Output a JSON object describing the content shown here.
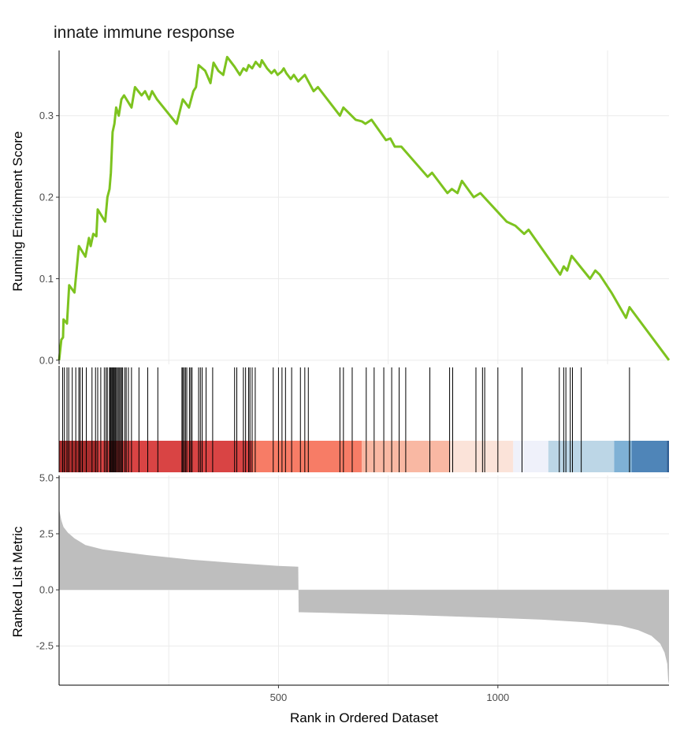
{
  "chart_data": {
    "type": "line",
    "title": "innate immune response",
    "rank_range": [
      0,
      1390
    ],
    "panels": {
      "running_score": {
        "ylabel": "Running Enrichment Score",
        "ylim": [
          -0.005,
          0.38
        ],
        "yticks": [
          {
            "value": 0.0,
            "label": "0.0"
          },
          {
            "value": 0.1,
            "label": "0.1"
          },
          {
            "value": 0.2,
            "label": "0.2"
          },
          {
            "value": 0.3,
            "label": "0.3"
          }
        ],
        "line_color": "#7dc31f",
        "points": [
          [
            0,
            0
          ],
          [
            5,
            0.025
          ],
          [
            9,
            0.028
          ],
          [
            10,
            0.05
          ],
          [
            18,
            0.045
          ],
          [
            23,
            0.092
          ],
          [
            35,
            0.083
          ],
          [
            45,
            0.14
          ],
          [
            60,
            0.127
          ],
          [
            68,
            0.15
          ],
          [
            72,
            0.14
          ],
          [
            78,
            0.155
          ],
          [
            85,
            0.152
          ],
          [
            88,
            0.185
          ],
          [
            105,
            0.17
          ],
          [
            110,
            0.2
          ],
          [
            115,
            0.21
          ],
          [
            118,
            0.23
          ],
          [
            122,
            0.28
          ],
          [
            126,
            0.29
          ],
          [
            130,
            0.31
          ],
          [
            136,
            0.3
          ],
          [
            142,
            0.32
          ],
          [
            148,
            0.325
          ],
          [
            165,
            0.31
          ],
          [
            173,
            0.335
          ],
          [
            188,
            0.325
          ],
          [
            196,
            0.33
          ],
          [
            205,
            0.32
          ],
          [
            212,
            0.33
          ],
          [
            223,
            0.32
          ],
          [
            268,
            0.29
          ],
          [
            282,
            0.32
          ],
          [
            296,
            0.31
          ],
          [
            306,
            0.33
          ],
          [
            312,
            0.335
          ],
          [
            318,
            0.362
          ],
          [
            333,
            0.355
          ],
          [
            345,
            0.34
          ],
          [
            352,
            0.365
          ],
          [
            363,
            0.355
          ],
          [
            374,
            0.35
          ],
          [
            383,
            0.372
          ],
          [
            400,
            0.36
          ],
          [
            412,
            0.35
          ],
          [
            420,
            0.358
          ],
          [
            427,
            0.355
          ],
          [
            432,
            0.362
          ],
          [
            440,
            0.358
          ],
          [
            448,
            0.366
          ],
          [
            458,
            0.36
          ],
          [
            462,
            0.368
          ],
          [
            474,
            0.358
          ],
          [
            484,
            0.352
          ],
          [
            491,
            0.356
          ],
          [
            498,
            0.35
          ],
          [
            507,
            0.354
          ],
          [
            512,
            0.358
          ],
          [
            518,
            0.352
          ],
          [
            528,
            0.345
          ],
          [
            535,
            0.35
          ],
          [
            545,
            0.342
          ],
          [
            560,
            0.35
          ],
          [
            580,
            0.33
          ],
          [
            590,
            0.335
          ],
          [
            640,
            0.3
          ],
          [
            648,
            0.31
          ],
          [
            676,
            0.295
          ],
          [
            690,
            0.293
          ],
          [
            698,
            0.29
          ],
          [
            712,
            0.295
          ],
          [
            745,
            0.27
          ],
          [
            755,
            0.272
          ],
          [
            765,
            0.262
          ],
          [
            780,
            0.262
          ],
          [
            840,
            0.225
          ],
          [
            850,
            0.23
          ],
          [
            885,
            0.205
          ],
          [
            895,
            0.21
          ],
          [
            908,
            0.205
          ],
          [
            918,
            0.22
          ],
          [
            945,
            0.2
          ],
          [
            960,
            0.205
          ],
          [
            1020,
            0.17
          ],
          [
            1040,
            0.165
          ],
          [
            1060,
            0.155
          ],
          [
            1070,
            0.16
          ],
          [
            1142,
            0.105
          ],
          [
            1150,
            0.115
          ],
          [
            1158,
            0.11
          ],
          [
            1168,
            0.128
          ],
          [
            1210,
            0.1
          ],
          [
            1222,
            0.11
          ],
          [
            1232,
            0.105
          ],
          [
            1260,
            0.082
          ],
          [
            1292,
            0.052
          ],
          [
            1300,
            0.065
          ],
          [
            1390,
            0.0
          ]
        ]
      },
      "hits": {
        "ranks": [
          8,
          12,
          18,
          22,
          30,
          38,
          45,
          48,
          53,
          62,
          75,
          83,
          88,
          95,
          103,
          107,
          110,
          115,
          116,
          118,
          120,
          122,
          124,
          126,
          128,
          130,
          133,
          135,
          138,
          140,
          143,
          145,
          150,
          153,
          158,
          165,
          182,
          202,
          225,
          280,
          282,
          285,
          288,
          291,
          297,
          300,
          303,
          318,
          322,
          326,
          335,
          350,
          400,
          405,
          420,
          425,
          432,
          435,
          440,
          447,
          488,
          500,
          508,
          516,
          530,
          550,
          560,
          568,
          640,
          648,
          668,
          700,
          718,
          740,
          758,
          775,
          790,
          845,
          890,
          897,
          950,
          965,
          970,
          1000,
          1055,
          1140,
          1150,
          1155,
          1165,
          1170,
          1190,
          1300
        ],
        "color_blocks": [
          {
            "from": 0,
            "to": 87,
            "color": "#a92d2d"
          },
          {
            "from": 87,
            "to": 440,
            "color": "#d94444"
          },
          {
            "from": 440,
            "to": 690,
            "color": "#f77c66"
          },
          {
            "from": 690,
            "to": 890,
            "color": "#f9b8a3"
          },
          {
            "from": 890,
            "to": 1035,
            "color": "#fbe3d9"
          },
          {
            "from": 1035,
            "to": 1115,
            "color": "#eff1fa"
          },
          {
            "from": 1115,
            "to": 1265,
            "color": "#bcd6e6"
          },
          {
            "from": 1265,
            "to": 1305,
            "color": "#7fb1d5"
          },
          {
            "from": 1305,
            "to": 1385,
            "color": "#4f85b8"
          },
          {
            "from": 1385,
            "to": 1390,
            "color": "#2f5f95"
          }
        ]
      },
      "ranked_metric": {
        "ylabel": "Ranked List Metric",
        "ylim": [
          -4.25,
          5.1
        ],
        "yticks": [
          {
            "value": 5.0,
            "label": "5.0"
          },
          {
            "value": 2.5,
            "label": "2.5"
          },
          {
            "value": 0.0,
            "label": "0.0"
          },
          {
            "value": -2.5,
            "label": "-2.5"
          }
        ],
        "fill_color": "#bebebe",
        "points": [
          [
            0,
            3.6
          ],
          [
            5,
            3.1
          ],
          [
            10,
            2.8
          ],
          [
            20,
            2.55
          ],
          [
            35,
            2.3
          ],
          [
            60,
            2.0
          ],
          [
            100,
            1.8
          ],
          [
            200,
            1.55
          ],
          [
            300,
            1.35
          ],
          [
            400,
            1.2
          ],
          [
            500,
            1.07
          ],
          [
            545,
            1.03
          ],
          [
            546,
            -1.0
          ],
          [
            600,
            -1.02
          ],
          [
            800,
            -1.12
          ],
          [
            1000,
            -1.25
          ],
          [
            1100,
            -1.33
          ],
          [
            1200,
            -1.45
          ],
          [
            1280,
            -1.6
          ],
          [
            1320,
            -1.8
          ],
          [
            1350,
            -2.05
          ],
          [
            1370,
            -2.4
          ],
          [
            1380,
            -2.8
          ],
          [
            1386,
            -3.3
          ],
          [
            1388,
            -4.0
          ],
          [
            1390,
            -4.2
          ]
        ]
      }
    },
    "xticks": [
      {
        "value": 500,
        "label": "500"
      },
      {
        "value": 1000,
        "label": "1000"
      }
    ],
    "xlabel": "Rank in Ordered Dataset"
  }
}
